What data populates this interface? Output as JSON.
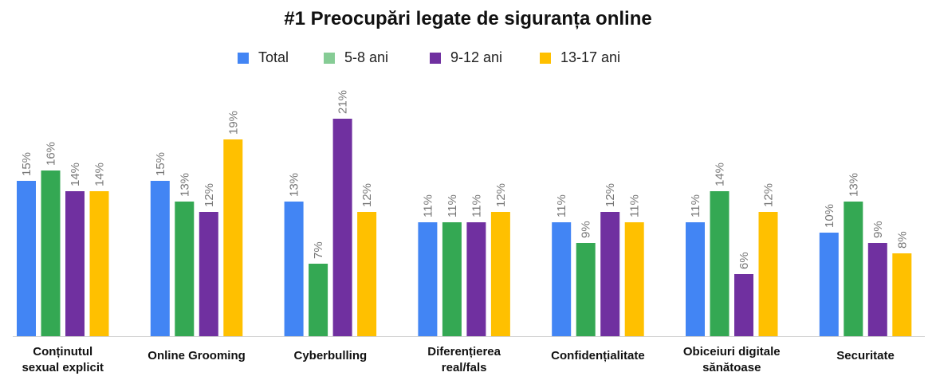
{
  "chart_data": {
    "type": "bar",
    "title": "#1 Preocupări legate de siguranța online",
    "categories": [
      [
        "Conținutul",
        "sexual explicit"
      ],
      [
        "Online Grooming"
      ],
      [
        "Cyberbulling"
      ],
      [
        "Diferențierea",
        "real/fals"
      ],
      [
        "Confidențialitate"
      ],
      [
        "Obiceiuri digitale",
        "sănătoase"
      ],
      [
        "Securitate"
      ]
    ],
    "series": [
      {
        "name": "Total",
        "color": "#4285F4",
        "values": [
          15,
          15,
          13,
          11,
          11,
          11,
          10
        ],
        "labels": [
          "15%",
          "15%",
          "13%",
          "11%",
          "11%",
          "11%",
          "10%"
        ]
      },
      {
        "name": "5-8 ani",
        "color": "#34A853",
        "values": [
          16,
          13,
          7,
          11,
          9,
          14,
          13
        ],
        "labels": [
          "16%",
          "13%",
          "7%",
          "11%",
          "9%",
          "14%",
          "13%"
        ]
      },
      {
        "name": "9-12 ani",
        "color": "#7030A0",
        "values": [
          14,
          12,
          21,
          11,
          12,
          6,
          9
        ],
        "labels": [
          "14%",
          "12%",
          "21%",
          "11%",
          "12%",
          "6%",
          "9%"
        ]
      },
      {
        "name": "13-17 ani",
        "color": "#FFC000",
        "values": [
          14,
          19,
          12,
          12,
          11,
          12,
          8
        ],
        "labels": [
          "14%",
          "19%",
          "12%",
          "12%",
          "11%",
          "12%",
          "8%"
        ]
      }
    ],
    "legend_swatch_colors": [
      "#4285F4",
      "#86CC95",
      "#7030A0",
      "#FFC000"
    ],
    "legend_position": "top",
    "grid": false,
    "ylim": [
      0,
      23
    ]
  }
}
